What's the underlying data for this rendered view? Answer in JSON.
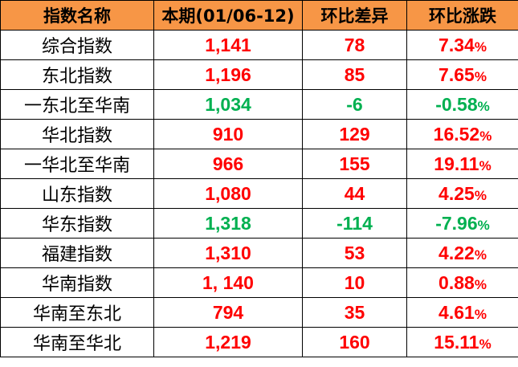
{
  "colors": {
    "header_bg": "#F79646",
    "up": "#FF0000",
    "down": "#00B050"
  },
  "headers": [
    "指数名称",
    "本期(01/06-12)",
    "环比差异",
    "环比涨跌"
  ],
  "rows": [
    {
      "name": "综合指数",
      "value": "1,141",
      "diff": "78",
      "change": "7.34",
      "trend": "up"
    },
    {
      "name": "东北指数",
      "value": "1,196",
      "diff": "85",
      "change": "7.65",
      "trend": "up"
    },
    {
      "name": "一东北至华南",
      "value": "1,034",
      "diff": "-6",
      "change": "-0.58",
      "trend": "down"
    },
    {
      "name": "华北指数",
      "value": "910",
      "diff": "129",
      "change": "16.52",
      "trend": "up"
    },
    {
      "name": "一华北至华南",
      "value": "966",
      "diff": "155",
      "change": "19.11",
      "trend": "up"
    },
    {
      "name": "山东指数",
      "value": "1,080",
      "diff": "44",
      "change": "4.25",
      "trend": "up"
    },
    {
      "name": "华东指数",
      "value": "1,318",
      "diff": "-114",
      "change": "-7.96",
      "trend": "down"
    },
    {
      "name": "福建指数",
      "value": "1,310",
      "diff": "53",
      "change": "4.22",
      "trend": "up"
    },
    {
      "name": "华南指数",
      "value": "1, 140",
      "diff": "10",
      "change": "0.88",
      "trend": "up"
    },
    {
      "name": "华南至东北",
      "value": "794",
      "diff": "35",
      "change": "4.61",
      "trend": "up"
    },
    {
      "name": "华南至华北",
      "value": "1,219",
      "diff": "160",
      "change": "15.11",
      "trend": "up"
    }
  ],
  "percent_sign": "%"
}
